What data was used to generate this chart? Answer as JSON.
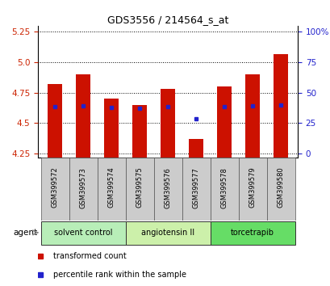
{
  "title": "GDS3556 / 214564_s_at",
  "samples": [
    "GSM399572",
    "GSM399573",
    "GSM399574",
    "GSM399575",
    "GSM399576",
    "GSM399577",
    "GSM399578",
    "GSM399579",
    "GSM399580"
  ],
  "bar_values": [
    4.82,
    4.9,
    4.7,
    4.65,
    4.78,
    4.37,
    4.8,
    4.9,
    5.07
  ],
  "bar_base": 4.22,
  "blue_dot_values": [
    4.635,
    4.645,
    4.63,
    4.625,
    4.635,
    4.535,
    4.635,
    4.645,
    4.65
  ],
  "blue_dot_standalone": [
    false,
    false,
    false,
    false,
    false,
    true,
    false,
    false,
    false
  ],
  "ylim": [
    4.22,
    5.3
  ],
  "y_ticks_left": [
    4.25,
    4.5,
    4.75,
    5.0,
    5.25
  ],
  "y_ticks_right_labels": [
    "0",
    "25",
    "50",
    "75",
    "100%"
  ],
  "group_boundaries": [
    {
      "start": 0,
      "end": 2,
      "label": "solvent control",
      "color": "#b8eeb8"
    },
    {
      "start": 3,
      "end": 5,
      "label": "angiotensin II",
      "color": "#ccf0aa"
    },
    {
      "start": 6,
      "end": 8,
      "label": "torcetrapib",
      "color": "#66dd66"
    }
  ],
  "bar_color": "#cc1100",
  "blue_color": "#2222cc",
  "left_tick_color": "#cc2200",
  "right_tick_color": "#2222cc",
  "bg_color": "#ffffff",
  "sample_box_color": "#cccccc",
  "legend_items": [
    {
      "label": "transformed count",
      "color": "#cc1100"
    },
    {
      "label": "percentile rank within the sample",
      "color": "#2222cc"
    }
  ],
  "agent_label": "agent"
}
